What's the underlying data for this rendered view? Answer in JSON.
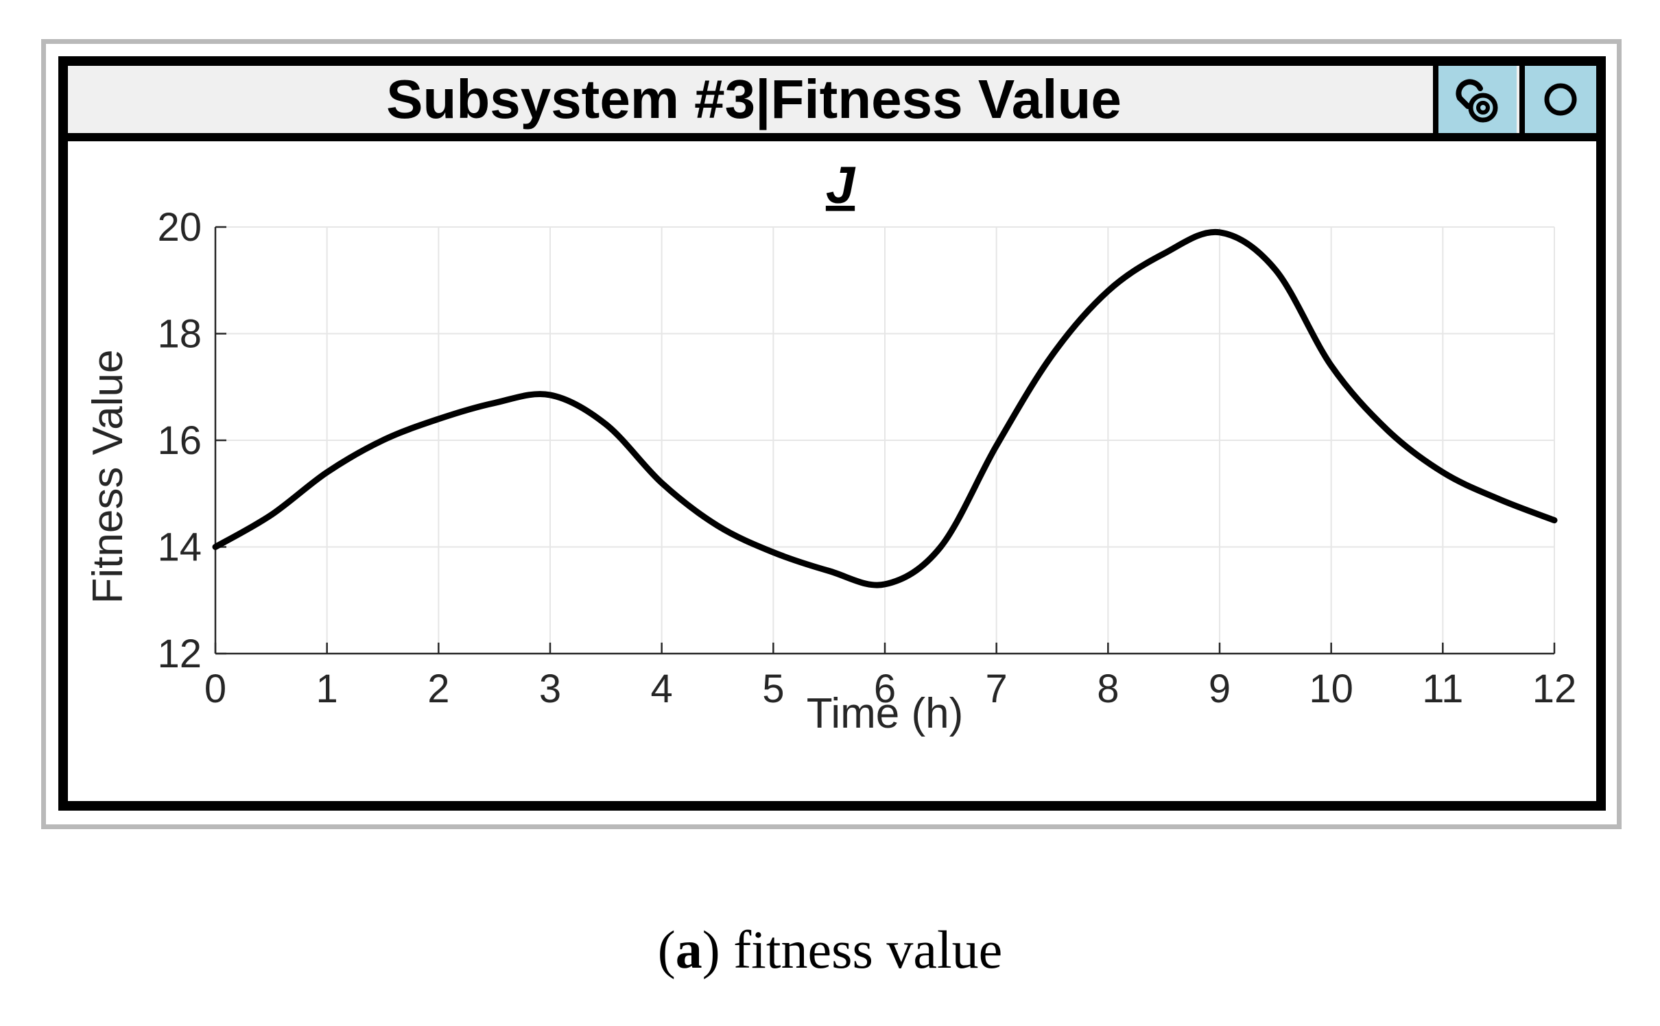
{
  "window": {
    "title": "Subsystem #3|Fitness Value",
    "buttons": [
      {
        "name": "link-button",
        "icon": "link-icon"
      },
      {
        "name": "record-button",
        "icon": "circle-icon"
      }
    ]
  },
  "caption": {
    "label": "a",
    "text": " fitness value"
  },
  "colors": {
    "titlebar": "#f0f0f0",
    "button": "#a8d6e4",
    "line": "#000000",
    "grid": "#e6e6e6"
  },
  "chart_data": {
    "type": "line",
    "title": "J",
    "xlabel": "Time (h)",
    "ylabel": "Fitness Value",
    "xlim": [
      0,
      12
    ],
    "ylim": [
      12,
      20
    ],
    "xticks": [
      "0",
      "1",
      "2",
      "3",
      "4",
      "5",
      "6",
      "7",
      "8",
      "9",
      "10",
      "11",
      "12"
    ],
    "yticks": [
      "12",
      "14",
      "16",
      "18",
      "20"
    ],
    "grid": true,
    "legend": "none",
    "series": [
      {
        "x": [
          0,
          0.5,
          1,
          1.5,
          2,
          2.5,
          3,
          3.5,
          4,
          4.5,
          5,
          5.5,
          6,
          6.5,
          7,
          7.5,
          8,
          8.5,
          9,
          9.5,
          10,
          10.5,
          11,
          11.5,
          12
        ],
        "y": [
          14.0,
          14.6,
          15.4,
          16.0,
          16.4,
          16.7,
          16.85,
          16.3,
          15.2,
          14.4,
          13.9,
          13.55,
          13.3,
          14.0,
          15.9,
          17.6,
          18.8,
          19.5,
          19.9,
          19.2,
          17.4,
          16.2,
          15.4,
          14.9,
          14.5
        ]
      }
    ]
  }
}
